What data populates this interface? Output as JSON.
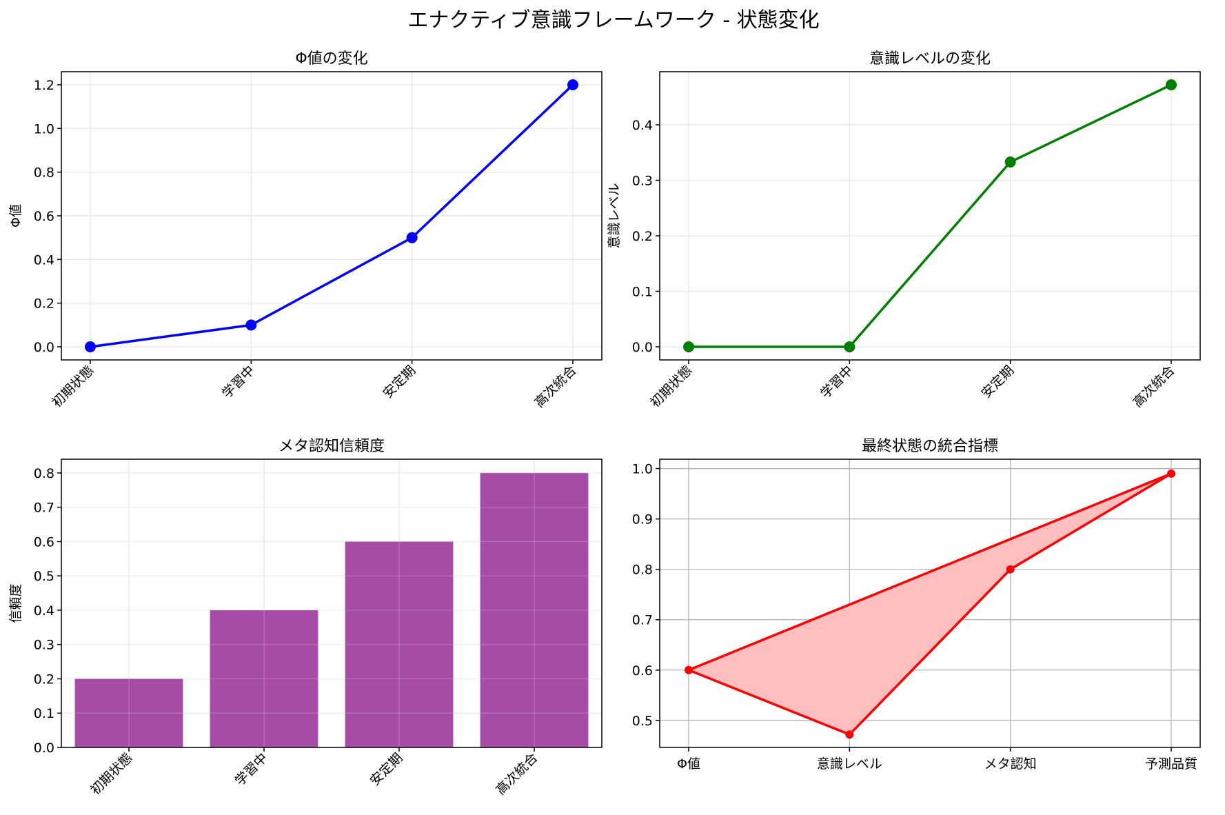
{
  "figure": {
    "title": "エナクティブ意識フレームワーク - 状態変化"
  },
  "chart_data": [
    {
      "type": "line",
      "title": "Φ値の変化",
      "xlabel": "",
      "ylabel": "Φ値",
      "categories": [
        "初期状態",
        "学習中",
        "安定期",
        "高次統合"
      ],
      "values": [
        0.0,
        0.1,
        0.5,
        1.2
      ],
      "ylim": [
        -0.06,
        1.26
      ],
      "yticks": [
        "0.0",
        "0.2",
        "0.4",
        "0.6",
        "0.8",
        "1.0",
        "1.2"
      ],
      "color": "#0000ff",
      "grid": true
    },
    {
      "type": "line",
      "title": "意識レベルの変化",
      "xlabel": "",
      "ylabel": "意識レベル",
      "categories": [
        "初期状態",
        "学習中",
        "安定期",
        "高次統合"
      ],
      "values": [
        0.0,
        0.0,
        0.333,
        0.472
      ],
      "ylim": [
        -0.0236,
        0.4956
      ],
      "yticks": [
        "0.0",
        "0.1",
        "0.2",
        "0.3",
        "0.4"
      ],
      "color": "#008000",
      "grid": true
    },
    {
      "type": "bar",
      "title": "メタ認知信頼度",
      "xlabel": "",
      "ylabel": "信頼度",
      "categories": [
        "初期状態",
        "学習中",
        "安定期",
        "高次統合"
      ],
      "values": [
        0.2,
        0.4,
        0.6,
        0.8
      ],
      "ylim": [
        0,
        0.84
      ],
      "yticks": [
        "0.0",
        "0.1",
        "0.2",
        "0.3",
        "0.4",
        "0.5",
        "0.6",
        "0.7",
        "0.8"
      ],
      "color": "#800080",
      "grid": true
    },
    {
      "type": "area",
      "title": "最終状態の統合指標",
      "xlabel": "",
      "ylabel": "",
      "categories": [
        "Φ値",
        "意識レベル",
        "メタ認知",
        "予測品質"
      ],
      "values": [
        0.6,
        0.472,
        0.8,
        0.99
      ],
      "ylim": [
        0.4464,
        1.0186
      ],
      "yticks": [
        "0.5",
        "0.6",
        "0.7",
        "0.8",
        "0.9",
        "1.0"
      ],
      "color": "#ff0000",
      "fill_color": "#ffbfbf",
      "closed_polygon": true,
      "grid": true
    }
  ]
}
